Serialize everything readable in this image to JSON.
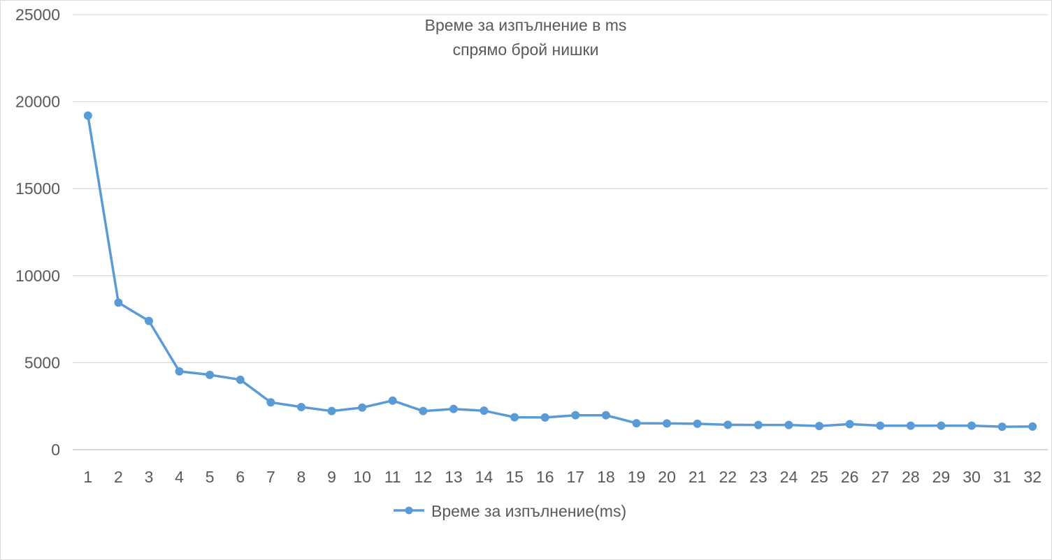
{
  "chart_data": {
    "type": "line",
    "title_lines": [
      "Време за изпълнение в ms",
      "спрямо брой нишки"
    ],
    "xlabel": "",
    "ylabel": "",
    "ylim": [
      0,
      25000
    ],
    "yticks": [
      0,
      5000,
      10000,
      15000,
      20000,
      25000
    ],
    "grid": true,
    "legend_position": "bottom",
    "categories": [
      "1",
      "2",
      "3",
      "4",
      "5",
      "6",
      "7",
      "8",
      "9",
      "10",
      "11",
      "12",
      "13",
      "14",
      "15",
      "16",
      "17",
      "18",
      "19",
      "20",
      "21",
      "22",
      "23",
      "24",
      "25",
      "26",
      "27",
      "28",
      "29",
      "30",
      "31",
      "32"
    ],
    "series": [
      {
        "name": "Време за изпълнение(ms)",
        "color": "#5b9bd5",
        "values": [
          19200,
          8450,
          7400,
          4500,
          4300,
          4020,
          2720,
          2450,
          2220,
          2420,
          2820,
          2220,
          2340,
          2240,
          1860,
          1850,
          1980,
          1980,
          1520,
          1510,
          1490,
          1430,
          1420,
          1420,
          1360,
          1470,
          1380,
          1380,
          1380,
          1380,
          1320,
          1330
        ]
      }
    ]
  }
}
